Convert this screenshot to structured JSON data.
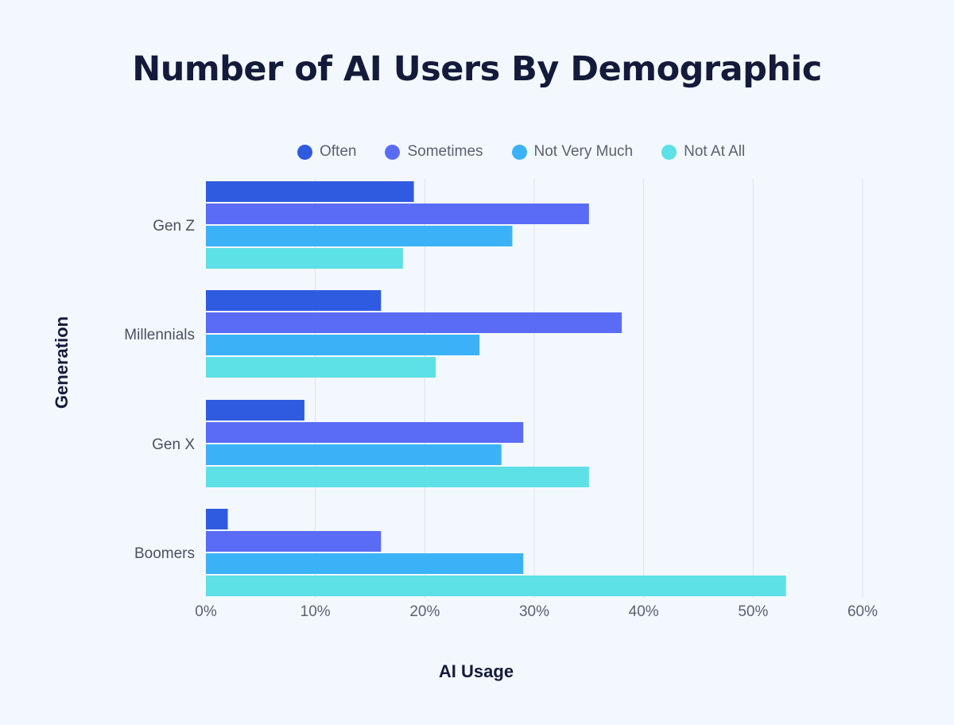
{
  "chart_data": {
    "type": "bar",
    "orientation": "horizontal",
    "title": "Number of AI Users By Demographic",
    "xlabel": "AI Usage",
    "ylabel": "Generation",
    "categories": [
      "Gen Z",
      "Millennials",
      "Gen X",
      "Boomers"
    ],
    "series": [
      {
        "name": "Often",
        "color": "#2f5be0",
        "values": [
          19,
          16,
          9,
          2
        ]
      },
      {
        "name": "Sometimes",
        "color": "#5a6cf5",
        "values": [
          35,
          38,
          29,
          16
        ]
      },
      {
        "name": "Not Very Much",
        "color": "#3bb2f8",
        "values": [
          28,
          25,
          27,
          29
        ]
      },
      {
        "name": "Not At All",
        "color": "#5de0e6",
        "values": [
          18,
          21,
          35,
          53
        ]
      }
    ],
    "xlim": [
      0,
      60
    ],
    "xticks": [
      0,
      10,
      20,
      30,
      40,
      50,
      60
    ],
    "xtick_labels": [
      "0%",
      "10%",
      "20%",
      "30%",
      "40%",
      "50%",
      "60%"
    ],
    "grid": true,
    "legend_position": "top"
  }
}
